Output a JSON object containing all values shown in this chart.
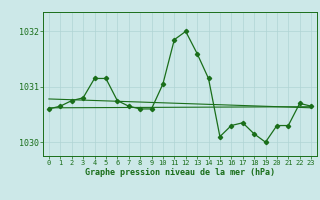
{
  "x": [
    0,
    1,
    2,
    3,
    4,
    5,
    6,
    7,
    8,
    9,
    10,
    11,
    12,
    13,
    14,
    15,
    16,
    17,
    18,
    19,
    20,
    21,
    22,
    23
  ],
  "line1": [
    1030.6,
    1030.65,
    1030.75,
    1030.8,
    1031.15,
    1031.15,
    1030.75,
    1030.65,
    1030.6,
    1030.6,
    1031.05,
    1031.85,
    1032.0,
    1031.6,
    1031.15,
    1030.1,
    1030.3,
    1030.35,
    1030.15,
    1030.0,
    1030.3,
    1030.3,
    1030.7,
    1030.65
  ],
  "trend1_x": [
    0,
    23
  ],
  "trend1_y": [
    1030.78,
    1030.62
  ],
  "trend2_x": [
    0,
    23
  ],
  "trend2_y": [
    1030.62,
    1030.64
  ],
  "background_color": "#cce8e8",
  "line_color": "#1a6e1a",
  "grid_color": "#b0d4d4",
  "tick_label_color": "#1a6e1a",
  "xlabel": "Graphe pression niveau de la mer (hPa)",
  "yticks": [
    1030,
    1031,
    1032
  ],
  "ylim": [
    1029.75,
    1032.35
  ],
  "xlim": [
    -0.5,
    23.5
  ]
}
